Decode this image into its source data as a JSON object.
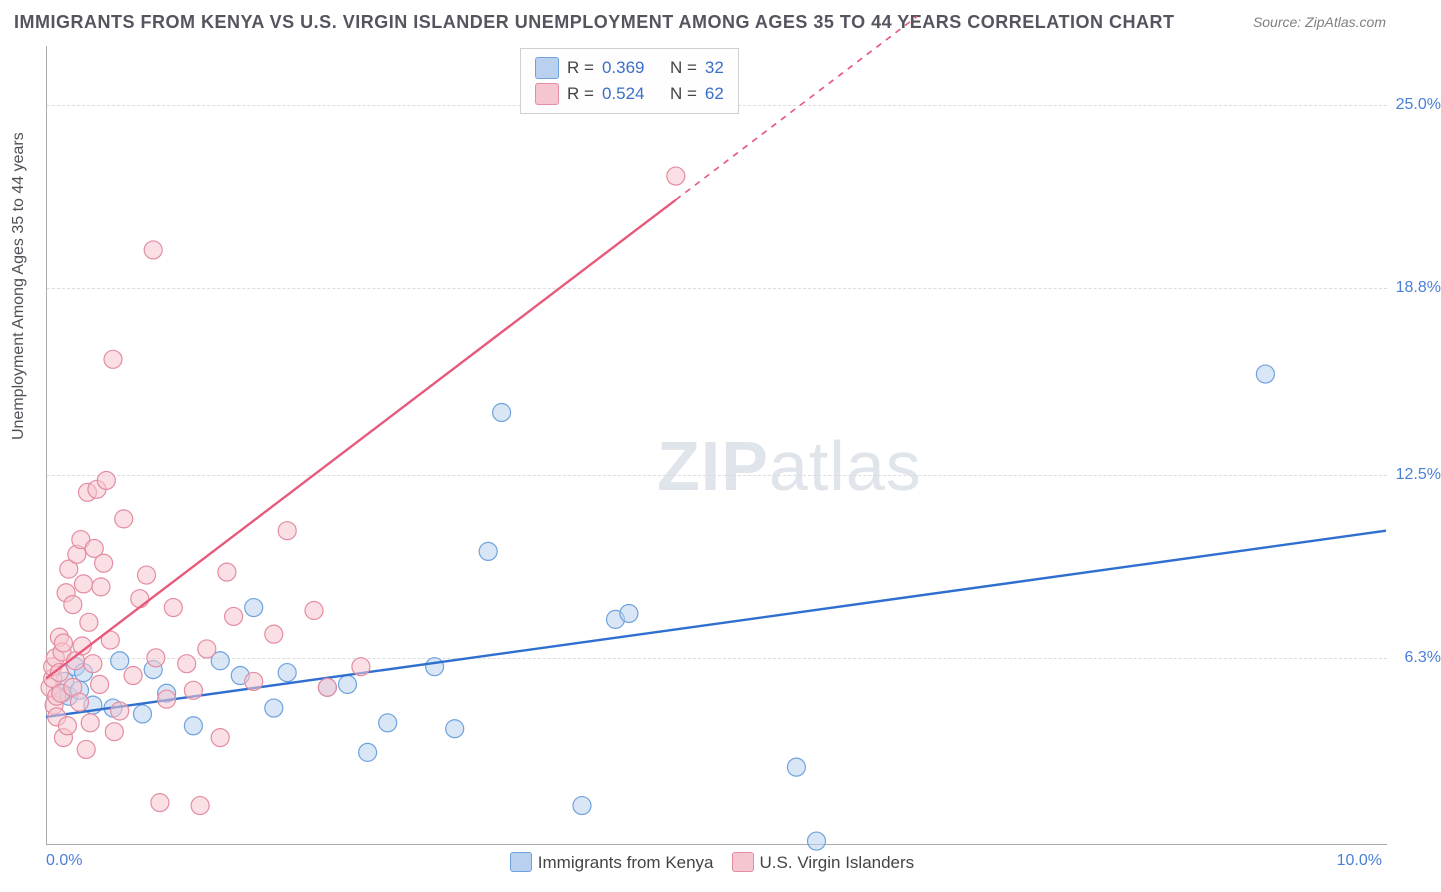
{
  "title": "IMMIGRANTS FROM KENYA VS U.S. VIRGIN ISLANDER UNEMPLOYMENT AMONG AGES 35 TO 44 YEARS CORRELATION CHART",
  "source": "Source: ZipAtlas.com",
  "ylabel": "Unemployment Among Ages 35 to 44 years",
  "watermark_a": "ZIP",
  "watermark_b": "atlas",
  "chart": {
    "type": "scatter",
    "xlim": [
      0,
      10
    ],
    "ylim": [
      0,
      27
    ],
    "background_color": "#ffffff",
    "grid_color": "#dcdcdc",
    "grid_style": "dashed",
    "axis_color": "#aaaaaa",
    "axis_label_color": "#4a7fd8",
    "title_fontsize": 18,
    "label_fontsize": 16,
    "marker_radius": 9,
    "marker_stroke_width": 1.2,
    "line_width": 2.4,
    "yticks": [
      {
        "value": 6.3,
        "label": "6.3%"
      },
      {
        "value": 12.5,
        "label": "12.5%"
      },
      {
        "value": 18.8,
        "label": "18.8%"
      },
      {
        "value": 25.0,
        "label": "25.0%"
      }
    ],
    "xtick_left": "0.0%",
    "xtick_right": "10.0%",
    "legend_bottom": {
      "items": [
        {
          "swatch": "blue",
          "label": "Immigrants from Kenya"
        },
        {
          "swatch": "pink",
          "label": "U.S. Virgin Islanders"
        }
      ]
    },
    "stat_legend": [
      {
        "swatch": "blue",
        "r": "0.369",
        "n": "32"
      },
      {
        "swatch": "pink",
        "r": "0.524",
        "n": "62"
      }
    ],
    "series": [
      {
        "name": "Immigrants from Kenya",
        "fill": "#b9d1ee",
        "stroke": "#6fa2dd",
        "regression": {
          "color": "#2f6fd0",
          "x1": 0.0,
          "y1": 4.3,
          "x2": 10.0,
          "y2": 10.6,
          "dashed_from_x": null
        },
        "points": [
          [
            0.12,
            5.1
          ],
          [
            0.14,
            5.5
          ],
          [
            0.17,
            5.0
          ],
          [
            0.22,
            6.0
          ],
          [
            0.25,
            5.2
          ],
          [
            0.28,
            5.8
          ],
          [
            0.35,
            4.7
          ],
          [
            0.5,
            4.6
          ],
          [
            0.55,
            6.2
          ],
          [
            0.72,
            4.4
          ],
          [
            0.8,
            5.9
          ],
          [
            0.9,
            5.1
          ],
          [
            1.1,
            4.0
          ],
          [
            1.3,
            6.2
          ],
          [
            1.45,
            5.7
          ],
          [
            1.55,
            8.0
          ],
          [
            1.7,
            4.6
          ],
          [
            1.8,
            5.8
          ],
          [
            2.1,
            5.3
          ],
          [
            2.25,
            5.4
          ],
          [
            2.4,
            3.1
          ],
          [
            2.55,
            4.1
          ],
          [
            2.9,
            6.0
          ],
          [
            3.05,
            3.9
          ],
          [
            3.3,
            9.9
          ],
          [
            3.4,
            14.6
          ],
          [
            4.0,
            1.3
          ],
          [
            4.25,
            7.6
          ],
          [
            4.35,
            7.8
          ],
          [
            5.6,
            2.6
          ],
          [
            5.75,
            0.1
          ],
          [
            9.1,
            15.9
          ]
        ]
      },
      {
        "name": "U.S. Virgin Islanders",
        "fill": "#f6c6d0",
        "stroke": "#e48ca1",
        "regression": {
          "color": "#e75a7c",
          "x1": 0.0,
          "y1": 5.6,
          "x2": 6.5,
          "y2": 28.0,
          "dashed_from_x": 4.7
        },
        "points": [
          [
            0.03,
            5.3
          ],
          [
            0.05,
            5.6
          ],
          [
            0.05,
            6.0
          ],
          [
            0.06,
            4.7
          ],
          [
            0.07,
            6.3
          ],
          [
            0.08,
            5.0
          ],
          [
            0.08,
            4.3
          ],
          [
            0.1,
            5.8
          ],
          [
            0.1,
            7.0
          ],
          [
            0.11,
            5.1
          ],
          [
            0.12,
            6.5
          ],
          [
            0.13,
            3.6
          ],
          [
            0.13,
            6.8
          ],
          [
            0.15,
            8.5
          ],
          [
            0.16,
            4.0
          ],
          [
            0.17,
            9.3
          ],
          [
            0.2,
            5.3
          ],
          [
            0.2,
            8.1
          ],
          [
            0.22,
            6.2
          ],
          [
            0.23,
            9.8
          ],
          [
            0.25,
            4.8
          ],
          [
            0.26,
            10.3
          ],
          [
            0.27,
            6.7
          ],
          [
            0.28,
            8.8
          ],
          [
            0.3,
            3.2
          ],
          [
            0.31,
            11.9
          ],
          [
            0.32,
            7.5
          ],
          [
            0.33,
            4.1
          ],
          [
            0.35,
            6.1
          ],
          [
            0.36,
            10.0
          ],
          [
            0.38,
            12.0
          ],
          [
            0.4,
            5.4
          ],
          [
            0.41,
            8.7
          ],
          [
            0.43,
            9.5
          ],
          [
            0.45,
            12.3
          ],
          [
            0.48,
            6.9
          ],
          [
            0.5,
            16.4
          ],
          [
            0.51,
            3.8
          ],
          [
            0.55,
            4.5
          ],
          [
            0.58,
            11.0
          ],
          [
            0.65,
            5.7
          ],
          [
            0.7,
            8.3
          ],
          [
            0.75,
            9.1
          ],
          [
            0.8,
            20.1
          ],
          [
            0.82,
            6.3
          ],
          [
            0.85,
            1.4
          ],
          [
            0.9,
            4.9
          ],
          [
            0.95,
            8.0
          ],
          [
            1.05,
            6.1
          ],
          [
            1.1,
            5.2
          ],
          [
            1.15,
            1.3
          ],
          [
            1.2,
            6.6
          ],
          [
            1.3,
            3.6
          ],
          [
            1.35,
            9.2
          ],
          [
            1.4,
            7.7
          ],
          [
            1.55,
            5.5
          ],
          [
            1.7,
            7.1
          ],
          [
            1.8,
            10.6
          ],
          [
            2.0,
            7.9
          ],
          [
            2.1,
            5.3
          ],
          [
            2.35,
            6.0
          ],
          [
            4.7,
            22.6
          ]
        ]
      }
    ]
  }
}
